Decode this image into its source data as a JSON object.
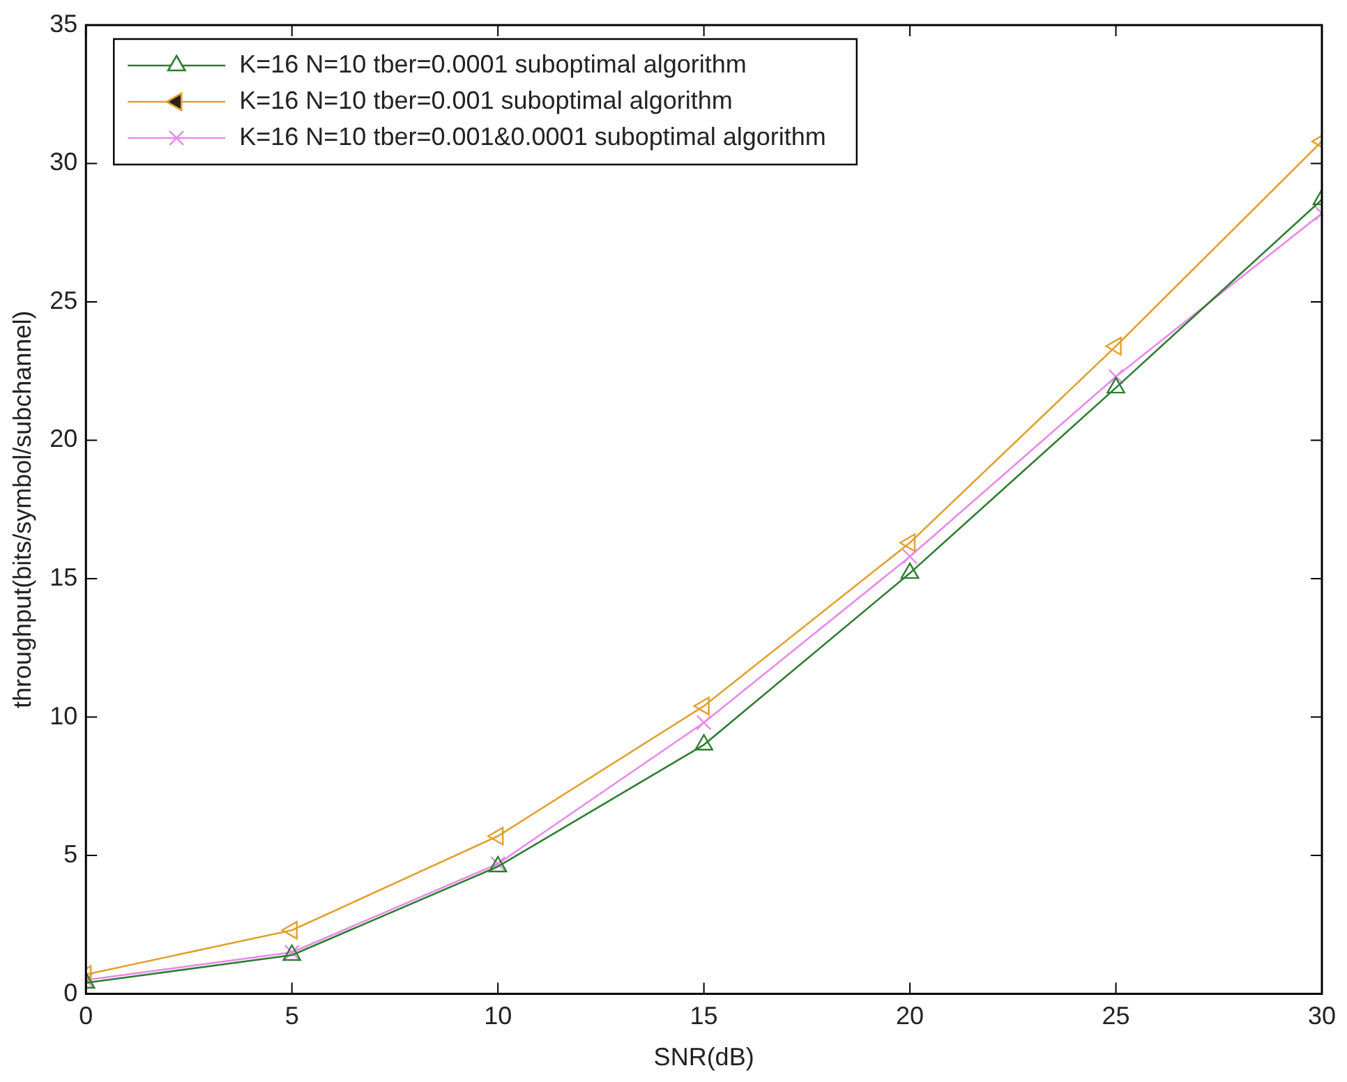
{
  "chart_data": {
    "type": "line",
    "xlabel": "SNR(dB)",
    "ylabel": "throughput(bits/symbol/subchannel)",
    "x": [
      0,
      5,
      10,
      15,
      20,
      25,
      30
    ],
    "series": [
      {
        "name": "K=16 N=10 tber=0.0001 suboptimal algorithm",
        "color": "#2e7d32",
        "marker": "triangle",
        "values": [
          0.4,
          1.4,
          4.6,
          9.0,
          15.2,
          21.9,
          28.7
        ]
      },
      {
        "name": "K=16 N=10 tber=0.001 suboptimal algorithm",
        "color": "#e0a030",
        "marker": "triangle",
        "values": [
          0.7,
          2.3,
          5.7,
          10.4,
          16.3,
          23.4,
          30.8
        ]
      },
      {
        "name": "K=16 N=10 tber=0.001&0.0001 suboptimal algorithm",
        "color": "#e88ae8",
        "marker": "cross",
        "values": [
          0.5,
          1.5,
          4.7,
          9.8,
          15.8,
          22.3,
          28.2
        ]
      }
    ],
    "xlim": [
      0,
      30
    ],
    "xticks": [
      0,
      5,
      10,
      15,
      20,
      25,
      30
    ],
    "ylim": [
      0,
      35
    ],
    "yticks": [
      0,
      5,
      10,
      15,
      20,
      25,
      30,
      35
    ],
    "grid": false,
    "legend": "top left",
    "line_style": "solid"
  }
}
